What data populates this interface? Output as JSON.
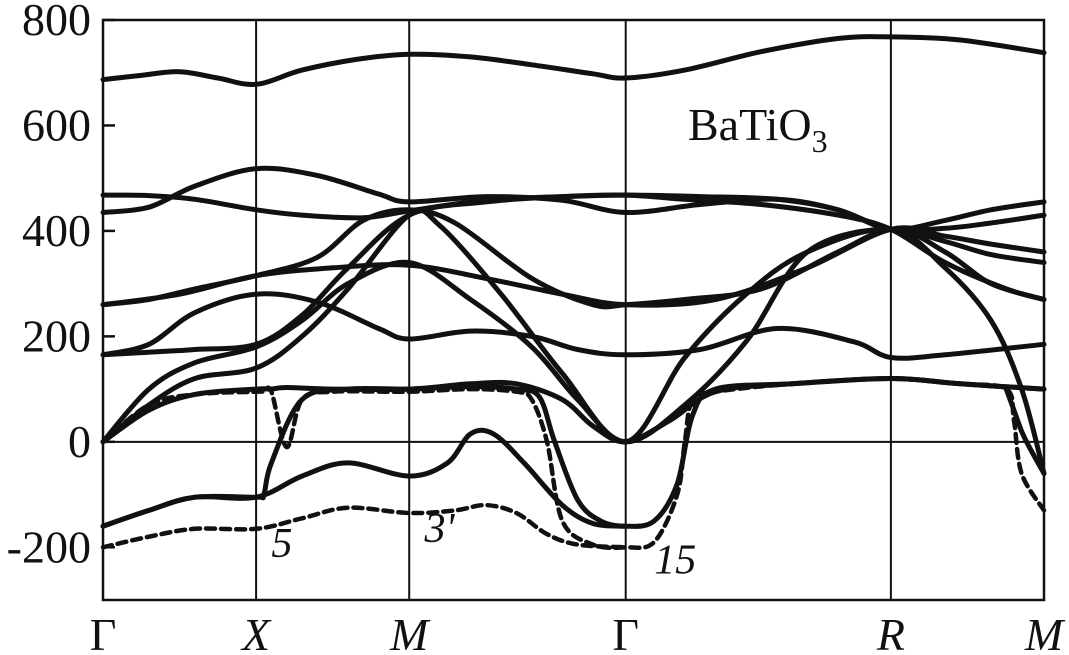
{
  "chart_data": {
    "type": "line",
    "title": "BaTiO",
    "title_sub": "3",
    "ylim": [
      -300,
      800
    ],
    "yticks": [
      800,
      600,
      400,
      200,
      0,
      -200
    ],
    "xticks": [
      {
        "label": "Γ",
        "pos": 0.0,
        "italic": false
      },
      {
        "label": "X",
        "pos": 1.0,
        "italic": true
      },
      {
        "label": "M",
        "pos": 2.0,
        "italic": true
      },
      {
        "label": "Γ",
        "pos": 3.414,
        "italic": false
      },
      {
        "label": "R",
        "pos": 5.146,
        "italic": true
      },
      {
        "label": "M",
        "pos": 6.146,
        "italic": true
      }
    ],
    "xlim": [
      0,
      6.146
    ],
    "grid": "vertical at high-symmetry points; horizontal at y=0",
    "annotations": [
      {
        "text": "5",
        "x": 1.1,
        "y": -218
      },
      {
        "text": "3'",
        "x": 2.1,
        "y": -190
      },
      {
        "text": "15",
        "x": 3.6,
        "y": -250
      }
    ],
    "series": [
      {
        "style": "solid",
        "x": [
          0,
          0.25,
          0.5,
          0.75,
          1,
          1.3,
          1.65,
          2,
          2.4,
          2.8,
          3.2,
          3.414,
          3.8,
          4.3,
          4.8,
          5.146,
          5.6,
          6.146
        ],
        "y": [
          687,
          695,
          702,
          690,
          678,
          705,
          725,
          735,
          730,
          715,
          698,
          690,
          705,
          740,
          765,
          768,
          762,
          738
        ]
      },
      {
        "style": "solid",
        "x": [
          0,
          0.3,
          0.6,
          1,
          1.4,
          1.8,
          2,
          2.5,
          3,
          3.414,
          3.9,
          4.4,
          4.8,
          5.146,
          5.5,
          5.8,
          6.146
        ],
        "y": [
          435,
          445,
          485,
          518,
          505,
          470,
          455,
          465,
          458,
          435,
          450,
          460,
          440,
          403,
          405,
          415,
          430
        ]
      },
      {
        "style": "solid",
        "x": [
          0,
          0.3,
          0.6,
          1,
          1.3,
          1.7,
          2,
          2.5,
          3,
          3.414,
          3.9,
          4.4,
          4.8,
          5.146,
          5.5,
          5.8,
          6.146
        ],
        "y": [
          468,
          467,
          460,
          440,
          430,
          425,
          438,
          458,
          465,
          468,
          465,
          460,
          440,
          403,
          420,
          440,
          455
        ]
      },
      {
        "style": "solid",
        "x": [
          0,
          0.3,
          0.6,
          1,
          1.4,
          1.7,
          2,
          2.3,
          2.8,
          3.2,
          3.414,
          3.8,
          4.3,
          4.8,
          5.146,
          5.5,
          5.8,
          6.146
        ],
        "y": [
          260,
          270,
          290,
          315,
          350,
          420,
          440,
          415,
          310,
          260,
          260,
          270,
          290,
          360,
          403,
          380,
          355,
          340
        ]
      },
      {
        "style": "solid",
        "x": [
          0,
          0.5,
          1,
          1.5,
          2,
          2.5,
          3,
          3.414,
          4,
          4.6,
          5.146,
          5.5,
          5.8,
          6.146
        ],
        "y": [
          260,
          280,
          315,
          330,
          335,
          310,
          280,
          260,
          270,
          330,
          403,
          390,
          375,
          360
        ]
      },
      {
        "style": "solid",
        "x": [
          0,
          0.3,
          0.6,
          1,
          1.4,
          1.8,
          2,
          2.4,
          2.8,
          3.1,
          3.414,
          3.9,
          4.4,
          4.9,
          5.146,
          5.5,
          6.146
        ],
        "y": [
          165,
          185,
          245,
          280,
          265,
          215,
          195,
          210,
          200,
          175,
          165,
          175,
          215,
          190,
          160,
          165,
          185
        ]
      },
      {
        "style": "solid",
        "x": [
          0,
          0.3,
          0.6,
          1,
          1.3,
          1.6,
          2,
          2.5,
          3,
          3.414,
          3.8,
          4.3,
          4.8,
          5.146,
          5.5,
          5.9,
          6.146
        ],
        "y": [
          165,
          170,
          175,
          185,
          240,
          330,
          430,
          455,
          465,
          468,
          460,
          450,
          430,
          403,
          340,
          290,
          270
        ]
      },
      {
        "style": "solid",
        "x": [
          0,
          0.3,
          0.6,
          1,
          1.3,
          1.6,
          2,
          2.2,
          2.6,
          3.0,
          3.414,
          3.8,
          4.2,
          4.6,
          5.146,
          5.5,
          5.8,
          6.0,
          6.146
        ],
        "y": [
          0,
          70,
          120,
          140,
          200,
          290,
          430,
          410,
          280,
          130,
          0,
          160,
          280,
          360,
          403,
          330,
          230,
          100,
          -60
        ]
      },
      {
        "style": "solid",
        "x": [
          0,
          0.3,
          0.6,
          1,
          1.3,
          1.6,
          2,
          2.4,
          2.8,
          3.1,
          3.414,
          3.8,
          4.2,
          4.6,
          5.146,
          5.5,
          5.8,
          6.146
        ],
        "y": [
          0,
          100,
          150,
          180,
          230,
          300,
          340,
          270,
          180,
          80,
          0,
          70,
          190,
          360,
          403,
          360,
          300,
          270
        ]
      },
      {
        "style": "solid",
        "x": [
          0,
          0.3,
          0.6,
          1,
          1.1,
          1.2,
          1.5,
          2,
          2.4,
          2.7,
          3.0,
          3.2,
          3.414,
          3.7,
          4.0,
          4.5,
          5.146,
          5.6,
          6.146
        ],
        "y": [
          0,
          60,
          90,
          100,
          100,
          103,
          100,
          100,
          110,
          110,
          80,
          30,
          0,
          40,
          95,
          110,
          120,
          110,
          100
        ]
      },
      {
        "style": "solid",
        "x": [
          0,
          0.3,
          0.6,
          1,
          1.05,
          1.1,
          1.3,
          1.6,
          2,
          2.4,
          2.7,
          2.85,
          2.95,
          3.1,
          3.25,
          3.414,
          3.6,
          3.75,
          3.85,
          4.0,
          4.5,
          5.146,
          5.6,
          6.146
        ],
        "y": [
          -160,
          -130,
          -105,
          -105,
          -100,
          -40,
          80,
          100,
          100,
          105,
          100,
          85,
          0,
          -110,
          -150,
          -160,
          -150,
          -80,
          50,
          100,
          110,
          120,
          110,
          100
        ]
      },
      {
        "style": "solid",
        "x": [
          0,
          0.3,
          0.6,
          1,
          1.3,
          1.6,
          2,
          2.25,
          2.4,
          2.55,
          2.75,
          3.0,
          3.2,
          3.414
        ],
        "y": [
          -160,
          -130,
          -105,
          -105,
          -65,
          -40,
          -65,
          -40,
          15,
          15,
          -40,
          -120,
          -155,
          -160
        ]
      },
      {
        "style": "solid",
        "x": [
          5.9,
          5.95,
          6.0,
          6.05,
          6.146
        ],
        "y": [
          100,
          60,
          20,
          -10,
          -60
        ]
      },
      {
        "style": "dashed",
        "x": [
          0,
          0.3,
          0.6,
          1,
          1.05,
          1.1,
          1.2,
          1.3,
          1.5,
          2,
          2.4,
          2.7,
          2.8,
          2.9,
          3.0,
          3.2,
          3.414,
          3.6,
          3.75,
          3.8,
          3.85,
          4.0,
          4.5,
          5.146,
          5.6,
          5.9,
          5.95,
          6.0,
          6.146
        ],
        "y": [
          0,
          70,
          90,
          95,
          95,
          95,
          -10,
          80,
          95,
          95,
          100,
          95,
          80,
          0,
          -150,
          -195,
          -200,
          -190,
          -100,
          0,
          80,
          95,
          110,
          120,
          110,
          100,
          40,
          -60,
          -130
        ]
      },
      {
        "style": "dashed",
        "x": [
          0,
          0.3,
          0.6,
          1,
          1.3,
          1.6,
          2,
          2.3,
          2.5,
          2.7,
          2.9,
          3.1,
          3.414
        ],
        "y": [
          -200,
          -180,
          -165,
          -165,
          -145,
          -125,
          -135,
          -130,
          -120,
          -135,
          -175,
          -195,
          -200
        ]
      }
    ]
  }
}
